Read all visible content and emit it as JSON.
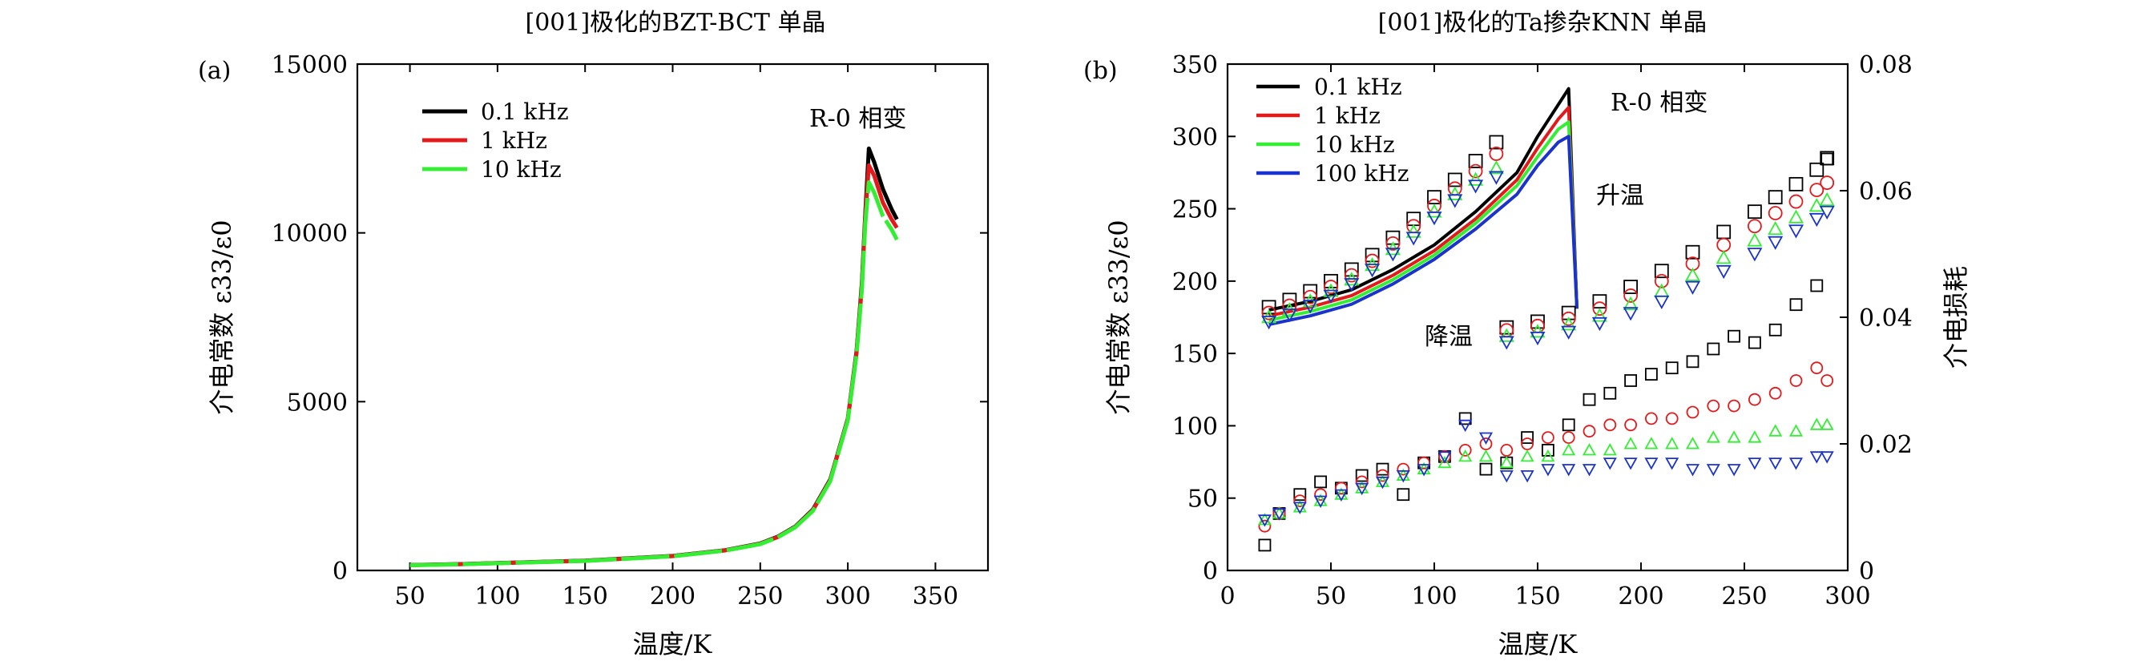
{
  "chart_data": [
    {
      "panel_label": "(a)",
      "type": "line",
      "title": "[001]极化的BZT-BCT 单晶",
      "xlabel": "温度/K",
      "ylabel": "介电常数 ε33/ε0",
      "xlim": [
        20,
        380
      ],
      "ylim": [
        0,
        15000
      ],
      "xticks": [
        "50",
        "100",
        "150",
        "200",
        "250",
        "300",
        "350"
      ],
      "yticks": [
        "0",
        "5000",
        "10000",
        "15000"
      ],
      "legend_position": "upper-left",
      "annotations": [
        "R-0 相变"
      ],
      "series": [
        {
          "name": "0.1 kHz",
          "color": "#000000",
          "x": [
            50,
            80,
            100,
            150,
            200,
            230,
            250,
            260,
            270,
            280,
            290,
            300,
            305,
            308,
            310,
            312,
            315,
            320,
            325,
            328
          ],
          "y": [
            160,
            190,
            220,
            290,
            430,
            600,
            800,
            1000,
            1300,
            1800,
            2700,
            4500,
            6500,
            8500,
            10600,
            12500,
            12100,
            11300,
            10700,
            10400
          ]
        },
        {
          "name": "1 kHz",
          "color": "#e31a1c",
          "x": [
            50,
            80,
            100,
            150,
            200,
            230,
            250,
            260,
            270,
            280,
            290,
            300,
            305,
            308,
            310,
            312,
            315,
            320,
            325,
            328
          ],
          "y": [
            158,
            187,
            217,
            286,
            425,
            594,
            790,
            990,
            1290,
            1780,
            2680,
            4480,
            6450,
            8400,
            10500,
            12000,
            11700,
            10900,
            10400,
            10150
          ]
        },
        {
          "name": "10 kHz",
          "color": "#33ee33",
          "x": [
            50,
            80,
            100,
            150,
            200,
            230,
            250,
            260,
            270,
            280,
            290,
            300,
            305,
            308,
            310,
            312,
            315,
            320,
            325,
            328
          ],
          "y": [
            155,
            184,
            214,
            282,
            420,
            588,
            780,
            980,
            1280,
            1760,
            2650,
            4450,
            6400,
            8300,
            10300,
            11500,
            11200,
            10500,
            10100,
            9800
          ]
        }
      ]
    },
    {
      "panel_label": "(b)",
      "type": "scatter",
      "title": "[001]极化的Ta掺杂KNN 单晶",
      "xlabel": "温度/K",
      "ylabel": "介电常数 ε33/ε0",
      "ylabel_right": "介电损耗",
      "xlim": [
        0,
        300
      ],
      "ylim": [
        0,
        350
      ],
      "ylim_right": [
        0,
        0.08
      ],
      "xticks": [
        "0",
        "50",
        "100",
        "150",
        "200",
        "250",
        "300"
      ],
      "yticks": [
        "0",
        "50",
        "100",
        "150",
        "200",
        "250",
        "300",
        "350"
      ],
      "yticks_right": [
        "0",
        "0.02",
        "0.04",
        "0.06",
        "0.08"
      ],
      "legend_position": "upper-left",
      "annotations": [
        "R-0 相变",
        "升温",
        "降温"
      ],
      "heating_x": [
        20,
        40,
        60,
        80,
        100,
        120,
        140,
        150,
        160,
        165
      ],
      "heating_series": [
        {
          "name": "0.1 kHz",
          "color": "#000000",
          "y": [
            180,
            186,
            194,
            208,
            225,
            248,
            275,
            300,
            322,
            333
          ]
        },
        {
          "name": "1 kHz",
          "color": "#e31a1c",
          "y": [
            176,
            182,
            190,
            204,
            221,
            243,
            270,
            292,
            312,
            320
          ]
        },
        {
          "name": "10 kHz",
          "color": "#33ee33",
          "y": [
            173,
            179,
            187,
            201,
            218,
            240,
            266,
            286,
            305,
            310
          ]
        },
        {
          "name": "100 kHz",
          "color": "#1a33cc",
          "y": [
            170,
            176,
            184,
            198,
            215,
            236,
            260,
            280,
            296,
            300
          ]
        }
      ],
      "heating_end_x": 169,
      "heating_end_y": 181,
      "cooling_eps_x": [
        20,
        30,
        40,
        50,
        60,
        70,
        80,
        90,
        100,
        110,
        120,
        130
      ],
      "cooling_eps_markers": [
        {
          "marker": "square",
          "color": "#000000",
          "y": [
            182,
            187,
            193,
            200,
            208,
            218,
            230,
            243,
            258,
            270,
            283,
            296
          ]
        },
        {
          "marker": "circle",
          "color": "#e31a1c",
          "y": [
            178,
            183,
            189,
            196,
            204,
            214,
            226,
            238,
            252,
            264,
            276,
            288
          ]
        },
        {
          "marker": "triangle-up",
          "color": "#33ee33",
          "y": [
            175,
            180,
            186,
            193,
            201,
            211,
            222,
            234,
            248,
            260,
            270,
            278
          ]
        },
        {
          "marker": "triangle-down",
          "color": "#1a33cc",
          "y": [
            172,
            177,
            183,
            190,
            198,
            208,
            219,
            230,
            244,
            256,
            266,
            272
          ]
        }
      ],
      "cooling2_eps_x": [
        135,
        150,
        165,
        180,
        195,
        210,
        225,
        240,
        255,
        265,
        275,
        285,
        290
      ],
      "cooling2_eps_markers": [
        {
          "marker": "square",
          "color": "#000000",
          "y": [
            168,
            172,
            178,
            186,
            196,
            207,
            220,
            234,
            248,
            258,
            267,
            277,
            285
          ]
        },
        {
          "marker": "circle",
          "color": "#e31a1c",
          "y": [
            166,
            169,
            174,
            181,
            190,
            200,
            212,
            225,
            238,
            247,
            255,
            263,
            268
          ]
        },
        {
          "marker": "triangle-up",
          "color": "#33ee33",
          "y": [
            162,
            165,
            170,
            176,
            184,
            193,
            204,
            216,
            228,
            236,
            244,
            252,
            256
          ]
        },
        {
          "marker": "triangle-down",
          "color": "#1a33cc",
          "y": [
            158,
            161,
            165,
            171,
            178,
            186,
            196,
            207,
            219,
            227,
            235,
            243,
            248
          ]
        }
      ],
      "loss_x": [
        18,
        25,
        35,
        45,
        55,
        65,
        75,
        85,
        95,
        105,
        115,
        125,
        135,
        145,
        155,
        165,
        175,
        185,
        195,
        205,
        215,
        225,
        235,
        245,
        255,
        265,
        275,
        285,
        290
      ],
      "loss_series": [
        {
          "marker": "square",
          "color": "#000000",
          "y": [
            0.004,
            0.009,
            0.012,
            0.014,
            0.013,
            0.015,
            0.016,
            0.012,
            0.017,
            0.018,
            0.024,
            0.016,
            0.017,
            0.021,
            0.019,
            0.023,
            0.027,
            0.028,
            0.03,
            0.031,
            0.032,
            0.033,
            0.035,
            0.037,
            0.036,
            0.038,
            0.042,
            0.045,
            0.065
          ]
        },
        {
          "marker": "circle",
          "color": "#e31a1c",
          "y": [
            0.007,
            0.009,
            0.011,
            0.012,
            0.013,
            0.014,
            0.015,
            0.016,
            0.017,
            0.018,
            0.019,
            0.02,
            0.019,
            0.02,
            0.021,
            0.021,
            0.022,
            0.023,
            0.023,
            0.024,
            0.024,
            0.025,
            0.026,
            0.026,
            0.027,
            0.028,
            0.03,
            0.032,
            0.03
          ]
        },
        {
          "marker": "triangle-up",
          "color": "#33ee33",
          "y": [
            0.008,
            0.009,
            0.01,
            0.011,
            0.012,
            0.013,
            0.014,
            0.015,
            0.016,
            0.017,
            0.018,
            0.018,
            0.017,
            0.018,
            0.018,
            0.019,
            0.019,
            0.019,
            0.02,
            0.02,
            0.02,
            0.02,
            0.021,
            0.021,
            0.021,
            0.022,
            0.022,
            0.023,
            0.023
          ]
        },
        {
          "marker": "triangle-down",
          "color": "#1a33cc",
          "y": [
            0.008,
            0.009,
            0.01,
            0.011,
            0.012,
            0.013,
            0.014,
            0.015,
            0.016,
            0.018,
            0.023,
            0.021,
            0.015,
            0.015,
            0.016,
            0.016,
            0.016,
            0.017,
            0.017,
            0.017,
            0.017,
            0.016,
            0.016,
            0.016,
            0.017,
            0.017,
            0.017,
            0.018,
            0.018
          ]
        }
      ]
    }
  ]
}
